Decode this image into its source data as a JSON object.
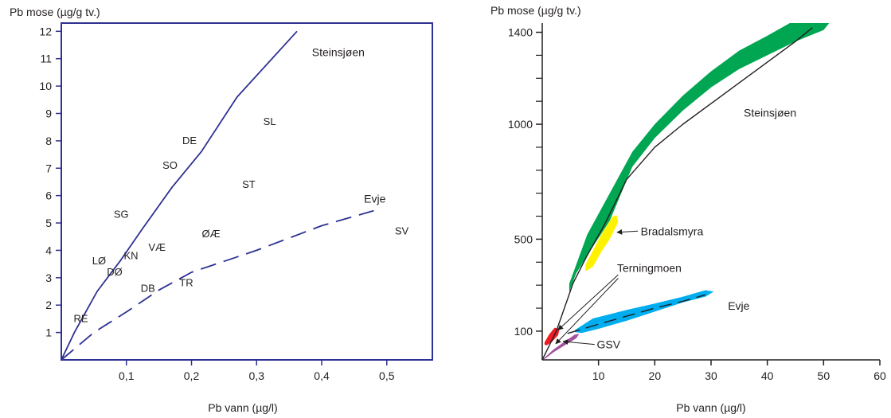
{
  "chart_data": [
    {
      "type": "line",
      "ylabel": "Pb mose (µg/g tv.)",
      "xlabel": "Pb vann (µg/l)",
      "xlim": [
        0,
        0.57
      ],
      "ylim": [
        0,
        12.3
      ],
      "x_ticks": [
        {
          "value": 0.1,
          "label": "0,1"
        },
        {
          "value": 0.2,
          "label": "0,2"
        },
        {
          "value": 0.3,
          "label": "0,3"
        },
        {
          "value": 0.4,
          "label": "0,4"
        },
        {
          "value": 0.5,
          "label": "0,5"
        }
      ],
      "y_ticks": [
        {
          "value": 1,
          "label": "1"
        },
        {
          "value": 2,
          "label": "2"
        },
        {
          "value": 3,
          "label": "3"
        },
        {
          "value": 4,
          "label": "4"
        },
        {
          "value": 5,
          "label": "5"
        },
        {
          "value": 6,
          "label": "6"
        },
        {
          "value": 7,
          "label": "7"
        },
        {
          "value": 8,
          "label": "8"
        },
        {
          "value": 9,
          "label": "9"
        },
        {
          "value": 10,
          "label": "10"
        },
        {
          "value": 11,
          "label": "11"
        },
        {
          "value": 12,
          "label": "12"
        }
      ],
      "series": [
        {
          "name": "Steinsjøen",
          "style": "solid",
          "color": "#2e3192",
          "points": [
            [
              0,
              0
            ],
            [
              0.02,
              1.0
            ],
            [
              0.055,
              2.5
            ],
            [
              0.09,
              3.6
            ],
            [
              0.125,
              4.8
            ],
            [
              0.17,
              6.3
            ],
            [
              0.215,
              7.6
            ],
            [
              0.27,
              9.6
            ],
            [
              0.362,
              12.0
            ]
          ]
        },
        {
          "name": "Evje",
          "style": "dashed",
          "color": "#2e3192",
          "points": [
            [
              0,
              0
            ],
            [
              0.05,
              1.0
            ],
            [
              0.1,
              1.75
            ],
            [
              0.15,
              2.55
            ],
            [
              0.2,
              3.2
            ],
            [
              0.3,
              4.0
            ],
            [
              0.4,
              4.9
            ],
            [
              0.48,
              5.45
            ]
          ]
        }
      ],
      "sites": [
        {
          "label": "SL",
          "x": 0.32,
          "y": 8.7
        },
        {
          "label": "DE",
          "x": 0.197,
          "y": 8.0
        },
        {
          "label": "SO",
          "x": 0.167,
          "y": 7.1
        },
        {
          "label": "ST",
          "x": 0.288,
          "y": 6.4
        },
        {
          "label": "SG",
          "x": 0.092,
          "y": 5.3
        },
        {
          "label": "SV",
          "x": 0.523,
          "y": 4.7
        },
        {
          "label": "ØÆ",
          "x": 0.23,
          "y": 4.6
        },
        {
          "label": "VÆ",
          "x": 0.147,
          "y": 4.1
        },
        {
          "label": "KN",
          "x": 0.107,
          "y": 3.8
        },
        {
          "label": "LØ",
          "x": 0.058,
          "y": 3.6
        },
        {
          "label": "DØ",
          "x": 0.082,
          "y": 3.2
        },
        {
          "label": "TR",
          "x": 0.192,
          "y": 2.8
        },
        {
          "label": "DB",
          "x": 0.133,
          "y": 2.6
        },
        {
          "label": "RE",
          "x": 0.03,
          "y": 1.5
        }
      ],
      "annotations": [
        {
          "text": "Steinsjøen",
          "x": 0.385,
          "y": 11.1
        },
        {
          "text": "Evje",
          "x": 0.465,
          "y": 5.75
        }
      ]
    },
    {
      "type": "area",
      "ylabel": "Pb mose (µg/g tv.)",
      "xlabel": "Pb vann (µg/l)",
      "xlim": [
        0,
        60
      ],
      "ylim": [
        -25,
        1440
      ],
      "x_ticks": [
        {
          "value": 10,
          "label": "10"
        },
        {
          "value": 20,
          "label": "20"
        },
        {
          "value": 30,
          "label": "30"
        },
        {
          "value": 40,
          "label": "40"
        },
        {
          "value": 50,
          "label": "50"
        },
        {
          "value": 60,
          "label": "60"
        }
      ],
      "y_ticks": [
        {
          "value": 100,
          "label": "100"
        },
        {
          "value": 500,
          "label": "500"
        },
        {
          "value": 1000,
          "label": "1000"
        },
        {
          "value": 1400,
          "label": "1400"
        }
      ],
      "y_minor_ticks": [
        200,
        300,
        400,
        600,
        700,
        800,
        900,
        1100,
        1200,
        1300
      ],
      "bands": [
        {
          "name": "Steinsjøen",
          "color": "#00a651",
          "upper": [
            [
              4.8,
              306
            ],
            [
              8,
              520
            ],
            [
              12,
              700
            ],
            [
              16,
              880
            ],
            [
              20,
              1000
            ],
            [
              25,
              1125
            ],
            [
              30,
              1230
            ],
            [
              35,
              1320
            ],
            [
              40,
              1385
            ],
            [
              44,
              1440
            ],
            [
              51,
              1440
            ]
          ],
          "lower": [
            [
              50,
              1410
            ],
            [
              45,
              1360
            ],
            [
              40,
              1300
            ],
            [
              35,
              1240
            ],
            [
              30,
              1160
            ],
            [
              25,
              1060
            ],
            [
              20,
              940
            ],
            [
              16,
              815
            ],
            [
              12,
              580
            ],
            [
              8,
              430
            ],
            [
              6,
              350
            ],
            [
              4.8,
              270
            ]
          ]
        },
        {
          "name": "Bradalsmyra",
          "color": "#fff200",
          "upper": [
            [
              7.7,
              390
            ],
            [
              10.5,
              520
            ],
            [
              12.5,
              598
            ],
            [
              13.2,
              605
            ],
            [
              13.5,
              575
            ]
          ],
          "lower": [
            [
              13.5,
              575
            ],
            [
              12,
              500
            ],
            [
              10.5,
              445
            ],
            [
              9,
              380
            ],
            [
              7.7,
              360
            ]
          ]
        },
        {
          "name": "Evje",
          "color": "#00aeef",
          "upper": [
            [
              5.8,
              105
            ],
            [
              9,
              155
            ],
            [
              15,
              192
            ],
            [
              20,
              220
            ],
            [
              25,
              250
            ],
            [
              29,
              278
            ],
            [
              30.5,
              272
            ]
          ],
          "lower": [
            [
              30.5,
              272
            ],
            [
              29,
              250
            ],
            [
              25,
              225
            ],
            [
              20,
              185
            ],
            [
              15,
              145
            ],
            [
              10,
              110
            ],
            [
              7,
              92
            ],
            [
              5.8,
              96
            ]
          ]
        },
        {
          "name": "Terningmoen",
          "color": "#ed1c24",
          "upper": [
            [
              0.4,
              50
            ],
            [
              1.2,
              85
            ],
            [
              2.2,
              115
            ],
            [
              3.1,
              110
            ]
          ],
          "lower": [
            [
              3.1,
              110
            ],
            [
              2.8,
              82
            ],
            [
              1.8,
              55
            ],
            [
              0.8,
              38
            ],
            [
              0.4,
              42
            ]
          ]
        },
        {
          "name": "GSV",
          "color": "#a3519e",
          "upper": [
            [
              0,
              -25
            ],
            [
              2,
              20
            ],
            [
              4,
              55
            ],
            [
              5.8,
              85
            ],
            [
              6.6,
              88
            ]
          ],
          "lower": [
            [
              6.6,
              88
            ],
            [
              6,
              68
            ],
            [
              4.2,
              42
            ],
            [
              2,
              8
            ],
            [
              0.5,
              -20
            ]
          ]
        }
      ],
      "series": [
        {
          "name": "Steinsjøen",
          "style": "solid",
          "color": "#231f20",
          "points": [
            [
              0,
              -25
            ],
            [
              2.5,
              100
            ],
            [
              5.5,
              310
            ],
            [
              8,
              430
            ],
            [
              11,
              560
            ],
            [
              13,
              660
            ],
            [
              15,
              760
            ],
            [
              20,
              900
            ],
            [
              25,
              1000
            ],
            [
              30,
              1090
            ],
            [
              35,
              1180
            ],
            [
              40,
              1270
            ],
            [
              45,
              1360
            ],
            [
              48,
              1420
            ]
          ]
        },
        {
          "name": "Evje",
          "style": "dashed",
          "color": "#231f20",
          "points": [
            [
              4.5,
              90
            ],
            [
              10,
              130
            ],
            [
              15,
              165
            ],
            [
              20,
              200
            ],
            [
              25,
              230
            ],
            [
              29,
              258
            ]
          ]
        }
      ],
      "labels": [
        {
          "text": "Steinsjøen",
          "x": 35.8,
          "y": 1050
        },
        {
          "text": "Bradalsmyra",
          "x": 17.5,
          "y": 535
        },
        {
          "text": "Terningmoen",
          "x": 13.3,
          "y": 375
        },
        {
          "text": "Evje",
          "x": 33,
          "y": 210
        },
        {
          "text": "GSV",
          "x": 9.7,
          "y": 42
        }
      ],
      "arrows": [
        {
          "from": [
            17,
            535
          ],
          "to": [
            13.3,
            530
          ]
        },
        {
          "from": [
            13.5,
            345
          ],
          "to": [
            2.8,
            105
          ]
        },
        {
          "from": [
            13.5,
            330
          ],
          "to": [
            2.4,
            45
          ]
        },
        {
          "from": [
            9.3,
            42
          ],
          "to": [
            3.7,
            55
          ]
        }
      ]
    }
  ]
}
